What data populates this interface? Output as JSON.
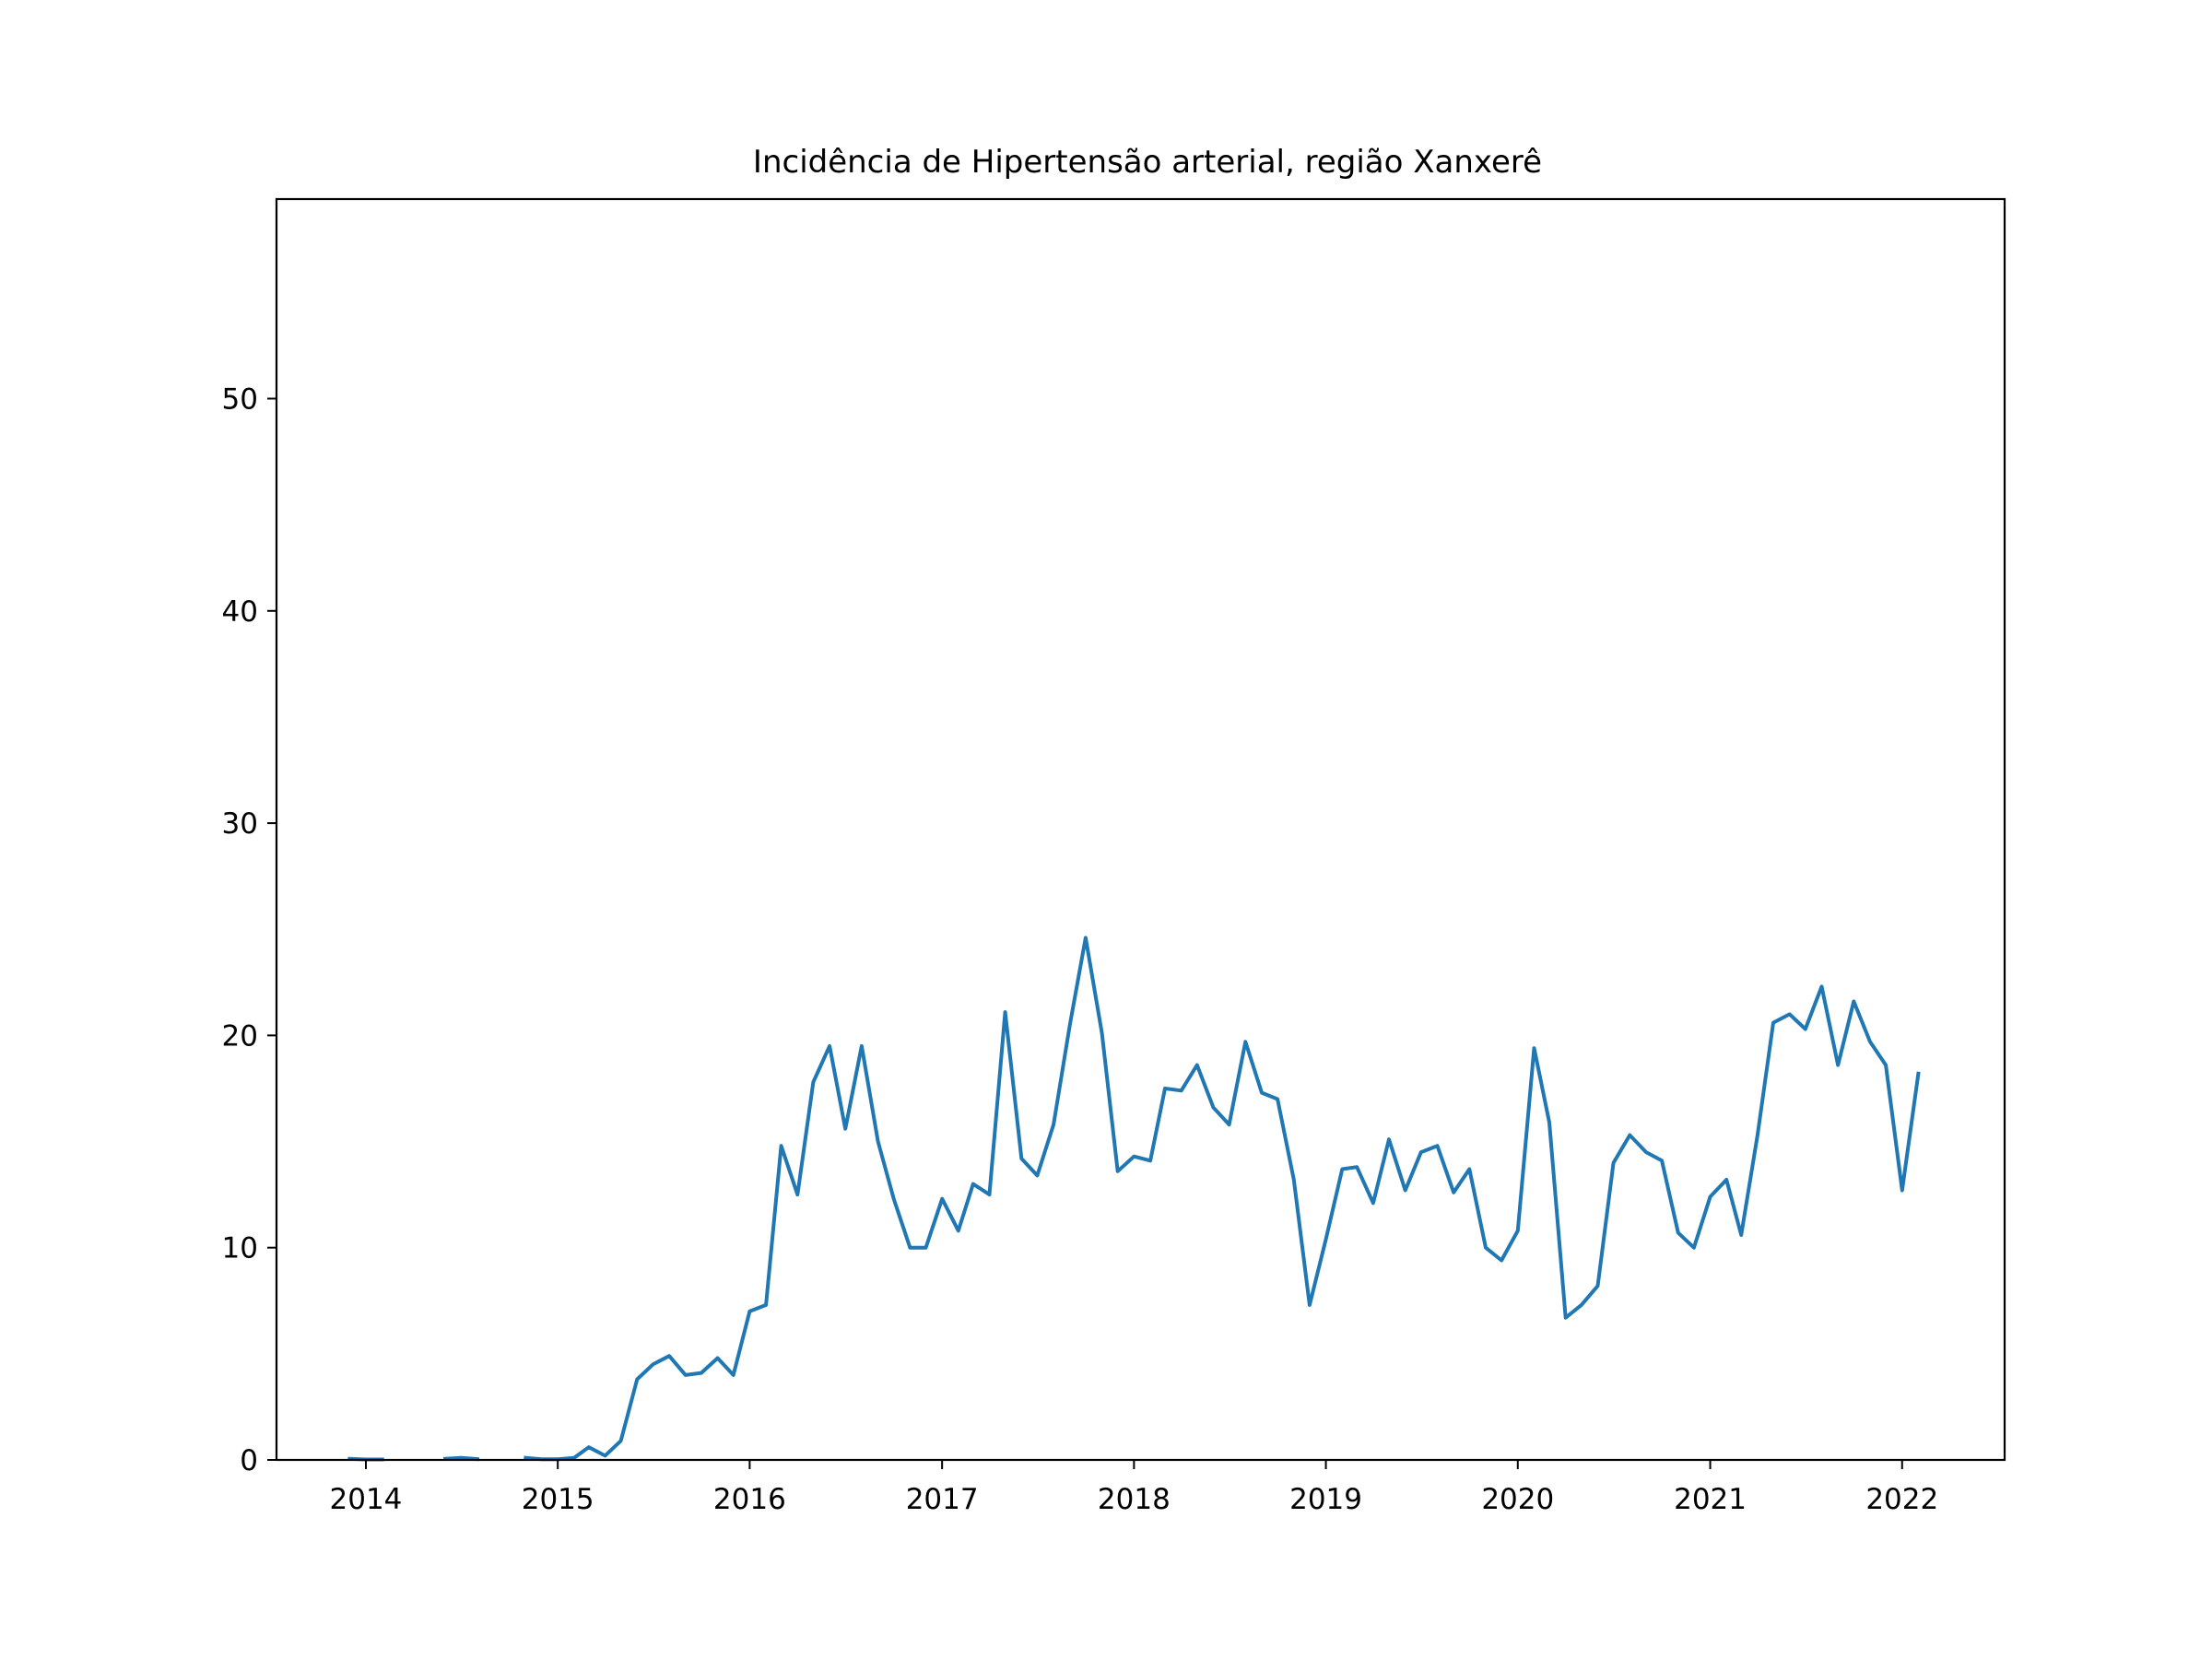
{
  "chart_data": {
    "type": "line",
    "title": "Incidência de Hipertensão arterial, região Xanxerê",
    "xlabel": "",
    "ylabel": "",
    "x_ticks": [
      "2014",
      "2015",
      "2016",
      "2017",
      "2018",
      "2019",
      "2020",
      "2021",
      "2022"
    ],
    "y_ticks": [
      "0",
      "10",
      "20",
      "30",
      "40",
      "50"
    ],
    "xlim": [
      "2013-07-15",
      "2022-07-15"
    ],
    "ylim": [
      0,
      59.4
    ],
    "grid": false,
    "line_color": "#1f77b4",
    "series": [
      {
        "segments": [
          {
            "x": [
              "2013-12-01",
              "2014-01-01",
              "2014-02-01"
            ],
            "y": [
              0.05,
              0.02,
              0.02
            ]
          },
          {
            "x": [
              "2014-06-01",
              "2014-07-01",
              "2014-08-01"
            ],
            "y": [
              0.05,
              0.1,
              0.04
            ]
          },
          {
            "x": [
              "2014-11-01",
              "2014-12-01",
              "2015-01-01",
              "2015-02-01",
              "2015-03-01",
              "2015-04-01",
              "2015-05-01",
              "2015-06-01",
              "2015-07-01",
              "2015-08-01",
              "2015-09-01",
              "2015-10-01",
              "2015-11-01",
              "2015-12-01",
              "2016-01-01",
              "2016-02-01",
              "2016-03-01",
              "2016-04-01",
              "2016-05-01",
              "2016-06-01",
              "2016-07-01",
              "2016-08-01",
              "2016-09-01",
              "2016-10-01",
              "2016-11-01",
              "2016-12-01",
              "2017-01-01",
              "2017-02-01",
              "2017-03-01",
              "2017-04-01",
              "2017-05-01",
              "2017-06-01",
              "2017-07-01",
              "2017-08-01",
              "2017-09-01",
              "2017-10-01",
              "2017-11-01",
              "2017-12-01",
              "2018-01-01",
              "2018-02-01",
              "2018-03-01",
              "2018-04-01",
              "2018-05-01",
              "2018-06-01",
              "2018-07-01",
              "2018-08-01",
              "2018-09-01",
              "2018-10-01",
              "2018-11-01",
              "2018-12-01",
              "2019-01-01",
              "2019-02-01",
              "2019-03-01",
              "2019-04-01",
              "2019-05-01",
              "2019-06-01",
              "2019-07-01",
              "2019-08-01",
              "2019-09-01",
              "2019-10-01",
              "2019-11-01",
              "2019-12-01",
              "2020-01-01",
              "2020-02-01",
              "2020-03-01",
              "2020-04-01",
              "2020-05-01",
              "2020-06-01",
              "2020-07-01",
              "2020-08-01",
              "2020-09-01",
              "2020-10-01",
              "2020-11-01",
              "2020-12-01",
              "2021-01-01",
              "2021-02-01",
              "2021-03-01",
              "2021-04-01",
              "2021-05-01",
              "2021-06-01",
              "2021-07-01",
              "2021-08-01",
              "2021-09-01",
              "2021-10-01",
              "2021-11-01",
              "2021-12-01",
              "2022-01-01",
              "2022-02-01"
            ],
            "y": [
              0.1,
              0.03,
              0.03,
              0.1,
              0.6,
              0.2,
              0.9,
              3.8,
              4.5,
              4.9,
              4.0,
              4.1,
              4.8,
              4.0,
              7.0,
              7.3,
              14.8,
              12.5,
              17.8,
              19.5,
              15.6,
              19.5,
              15.0,
              12.3,
              10.0,
              10.0,
              12.3,
              10.8,
              13.0,
              12.5,
              21.1,
              14.2,
              13.4,
              15.8,
              20.5,
              24.6,
              20.1,
              13.6,
              14.3,
              14.1,
              17.5,
              17.4,
              18.6,
              16.6,
              15.8,
              19.7,
              17.3,
              17.0,
              13.2,
              7.3,
              10.4,
              13.7,
              13.8,
              12.1,
              15.1,
              12.7,
              14.5,
              14.8,
              12.6,
              13.7,
              10.0,
              9.4,
              10.8,
              19.4,
              15.9,
              6.7,
              7.3,
              8.2,
              14.0,
              15.3,
              14.5,
              14.1,
              10.7,
              10.0,
              12.4,
              13.2,
              10.6,
              15.3,
              20.6,
              21.0,
              20.3,
              22.3,
              18.6,
              21.6,
              19.7,
              18.6,
              12.7,
              18.2
            ]
          }
        ]
      }
    ]
  }
}
